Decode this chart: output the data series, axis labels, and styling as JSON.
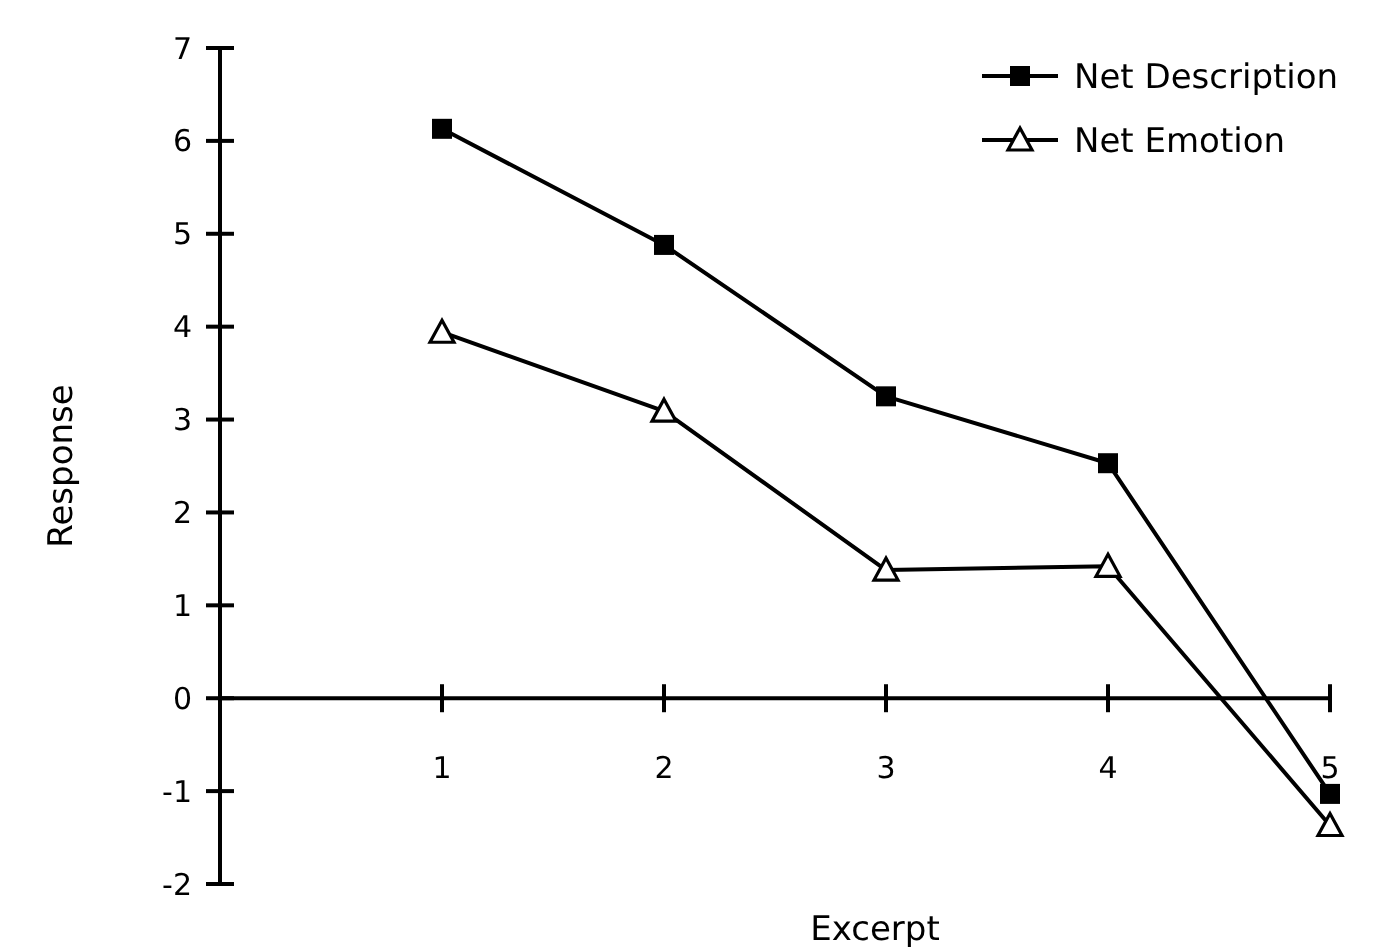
{
  "chart_data": {
    "type": "line",
    "xlabel": "Excerpt",
    "ylabel": "Response",
    "x": [
      1,
      2,
      3,
      4,
      5
    ],
    "xlim": [
      0,
      5
    ],
    "xticks": [
      1,
      2,
      3,
      4,
      5
    ],
    "ylim": [
      -2,
      7
    ],
    "yticks": [
      -2,
      -1,
      0,
      1,
      2,
      3,
      4,
      5,
      6,
      7
    ],
    "grid": false,
    "legend": "top right",
    "line_style": "solid",
    "series": [
      {
        "name": "Net Description",
        "color": "#000000",
        "marker": "square",
        "values": [
          6.13,
          4.88,
          3.25,
          2.53,
          -1.03
        ]
      },
      {
        "name": "Net Emotion",
        "color": "#000000",
        "marker": "triangle",
        "values": [
          3.94,
          3.09,
          1.38,
          1.42,
          -1.37
        ]
      }
    ]
  }
}
